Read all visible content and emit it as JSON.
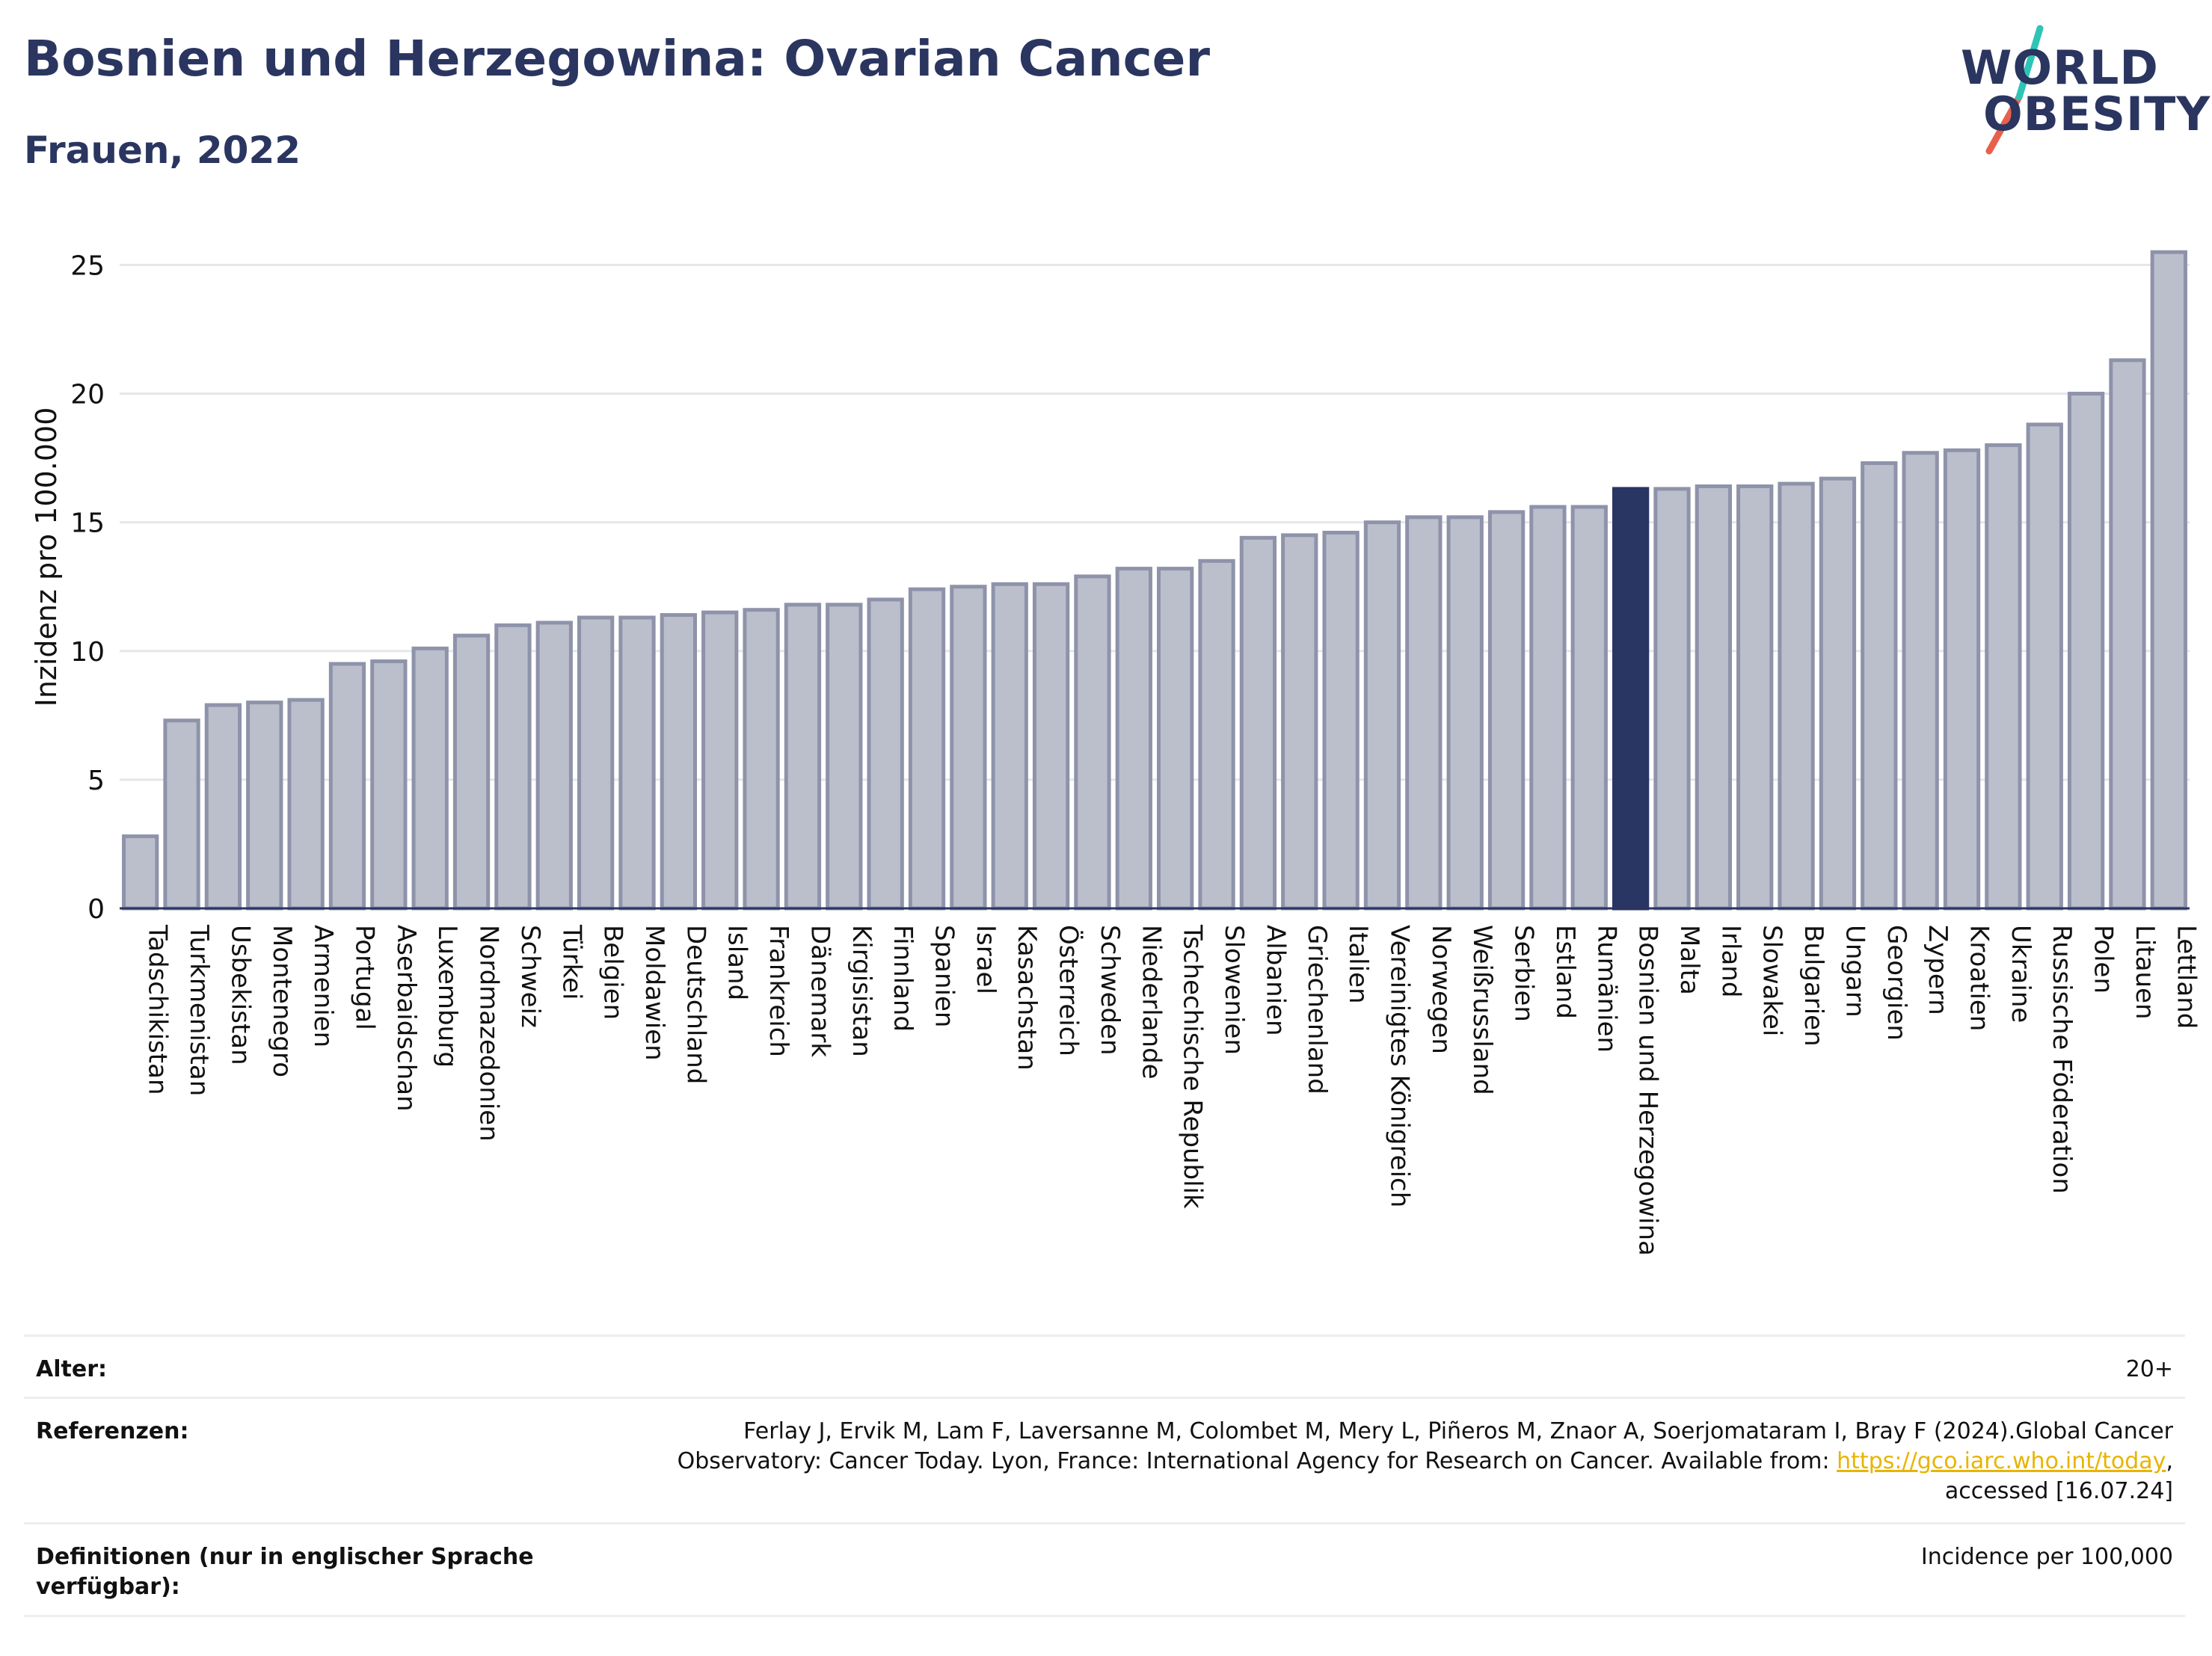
{
  "header": {
    "title": "Bosnien und Herzegowina: Ovarian Cancer",
    "subtitle": "Frauen, 2022"
  },
  "logo": {
    "line1": "WORLD",
    "line2": "OBESITY",
    "colors": {
      "text": "#2a3560",
      "slash_top": "#2ec4b6",
      "slash_bottom": "#e8604c"
    }
  },
  "colors": {
    "bar_default": "#bbbfcc",
    "bar_default_stroke": "#8e93aa",
    "bar_highlight": "#293563",
    "gridline": "#e6e6ea",
    "axis": "#2a3560"
  },
  "chart_data": {
    "type": "bar",
    "ylabel": "Inzidenz pro 100.000",
    "ylim": [
      0,
      26
    ],
    "yticks": [
      0,
      5,
      10,
      15,
      20,
      25
    ],
    "grid": true,
    "highlight": "Bosnien und Herzegowina",
    "categories": [
      "Tadschikistan",
      "Turkmenistan",
      "Usbekistan",
      "Montenegro",
      "Armenien",
      "Portugal",
      "Aserbaidschan",
      "Luxemburg",
      "Nordmazedonien",
      "Schweiz",
      "Türkei",
      "Belgien",
      "Moldawien",
      "Deutschland",
      "Island",
      "Frankreich",
      "Dänemark",
      "Kirgisistan",
      "Finnland",
      "Spanien",
      "Israel",
      "Kasachstan",
      "Österreich",
      "Schweden",
      "Niederlande",
      "Tschechische Republik",
      "Slowenien",
      "Albanien",
      "Griechenland",
      "Italien",
      "Vereinigtes Königreich",
      "Norwegen",
      "Weißrussland",
      "Serbien",
      "Estland",
      "Rumänien",
      "Bosnien und Herzegowina",
      "Malta",
      "Irland",
      "Slowakei",
      "Bulgarien",
      "Ungarn",
      "Georgien",
      "Zypern",
      "Kroatien",
      "Ukraine",
      "Russische Föderation",
      "Polen",
      "Litauen",
      "Lettland"
    ],
    "values": [
      2.8,
      7.3,
      7.9,
      8.0,
      8.1,
      9.5,
      9.6,
      10.1,
      10.6,
      11.0,
      11.1,
      11.3,
      11.3,
      11.4,
      11.5,
      11.6,
      11.8,
      11.8,
      12.0,
      12.4,
      12.5,
      12.6,
      12.6,
      12.9,
      13.2,
      13.2,
      13.5,
      14.4,
      14.5,
      14.6,
      15.0,
      15.2,
      15.2,
      15.4,
      15.6,
      15.6,
      16.3,
      16.3,
      16.4,
      16.4,
      16.5,
      16.7,
      17.3,
      17.7,
      17.8,
      18.0,
      18.8,
      20.0,
      21.3,
      25.5
    ]
  },
  "footer": {
    "age_label": "Alter:",
    "age_value": "20+",
    "ref_label": "Referenzen:",
    "ref_line1": "Ferlay J, Ervik M, Lam F, Laversanne M, Colombet M, Mery L, Piñeros M, Znaor A, Soerjomataram I, Bray F (2024).Global Cancer",
    "ref_line2_pre": "Observatory: Cancer Today. Lyon, France: International Agency for Research on Cancer. Available from: ",
    "ref_link": "https://gco.iarc.who.int/today",
    "ref_line2_post": ",",
    "ref_line3": "accessed [16.07.24]",
    "def_label_1": "Definitionen (nur in englischer Sprache",
    "def_label_2": "verfügbar):",
    "def_value": "Incidence per 100,000"
  }
}
